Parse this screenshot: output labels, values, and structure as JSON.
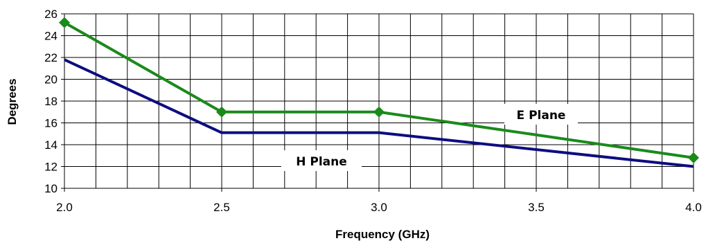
{
  "chart_data": {
    "type": "line",
    "xlabel": "Frequency (GHz)",
    "ylabel": "Degrees",
    "xlim": [
      2.0,
      4.0
    ],
    "ylim": [
      10,
      26
    ],
    "x_ticks": [
      "2.0",
      "2.5",
      "3.0",
      "3.5",
      "4.0"
    ],
    "y_ticks": [
      "10",
      "12",
      "14",
      "16",
      "18",
      "20",
      "22",
      "24",
      "26"
    ],
    "grid": true,
    "series": [
      {
        "name": "E Plane",
        "color": "#1a8a1a",
        "marker": "diamond",
        "x": [
          2.0,
          2.5,
          3.0,
          4.0
        ],
        "y": [
          25.2,
          17.0,
          17.0,
          12.8
        ]
      },
      {
        "name": "H Plane",
        "color": "#0d0d80",
        "marker": "none",
        "x": [
          2.0,
          2.5,
          3.0,
          4.0
        ],
        "y": [
          21.8,
          15.1,
          15.1,
          12.0
        ]
      }
    ]
  }
}
